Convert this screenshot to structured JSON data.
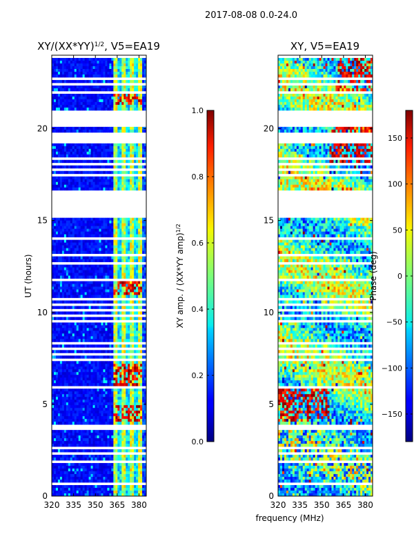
{
  "suptitle": "2017-08-08 0.0-24.0",
  "chart_data": [
    {
      "type": "heatmap",
      "id": "amp",
      "title_main": "XY/(XX*YY)",
      "title_exp": "1/2",
      "title_tail": ", V5=EA19",
      "xlabel": "",
      "ylabel": "UT (hours)",
      "xlim": [
        320,
        385
      ],
      "ylim": [
        0,
        24
      ],
      "xticks": [
        320,
        335,
        350,
        365,
        380
      ],
      "yticks": [
        0,
        5,
        10,
        15,
        20
      ],
      "colorbar": {
        "label_main": "XY amp. / (XX*YY amp)",
        "label_exp": "1/2",
        "range": [
          0.0,
          1.0
        ],
        "ticks": [
          "0.0",
          "0.2",
          "0.4",
          "0.6",
          "0.8",
          "1.0"
        ],
        "tick_values": [
          0.0,
          0.2,
          0.4,
          0.6,
          0.8,
          1.0
        ],
        "colormap": "jet"
      },
      "flagged_rows_ut": [
        0.7,
        0.9,
        1.5,
        1.9,
        2.3,
        2.6,
        3.0,
        3.7,
        3.85,
        4.05,
        5.7,
        5.9,
        7.2,
        7.4,
        7.7,
        8.0,
        8.3,
        8.7,
        9.5,
        9.8,
        10.1,
        10.4,
        10.7,
        11.8,
        12.3,
        12.7,
        13.1,
        13.5,
        14.0,
        14.4
      ],
      "flagged_bands_ut": [
        [
          15.1,
          16.7
        ],
        [
          17.4,
          17.5
        ],
        [
          17.7,
          17.8
        ],
        [
          18.0,
          18.15
        ],
        [
          18.3,
          18.4
        ],
        [
          19.25,
          19.85
        ],
        [
          20.15,
          21.0
        ],
        [
          21.45,
          21.5
        ],
        [
          21.9,
          22.0
        ],
        [
          22.35,
          22.45
        ],
        [
          22.7,
          22.8
        ],
        [
          23.05,
          23.15
        ]
      ],
      "notes": "Low amplitude (~0.1) for 320-362 MHz; high amplitude (0.4-1.0) channels between 362-382 MHz"
    },
    {
      "type": "heatmap",
      "id": "phase",
      "title_main": "XY, V5=EA19",
      "xlabel": "frequency (MHz)",
      "ylabel": "",
      "xlim": [
        320,
        385
      ],
      "ylim": [
        0,
        24
      ],
      "xticks": [
        320,
        335,
        350,
        365,
        380
      ],
      "yticks": [
        0,
        5,
        10,
        15,
        20
      ],
      "colorbar": {
        "label_main": "Phase (deg)",
        "range": [
          -180,
          180
        ],
        "ticks": [
          "−150",
          "−100",
          "−50",
          "0",
          "50",
          "100",
          "150"
        ],
        "tick_values": [
          -150,
          -100,
          -50,
          0,
          50,
          100,
          150
        ],
        "colormap": "jet"
      },
      "notes": "Phase values spread across -180 to 180 degrees, mostly cyan/green with red/orange patches"
    }
  ]
}
